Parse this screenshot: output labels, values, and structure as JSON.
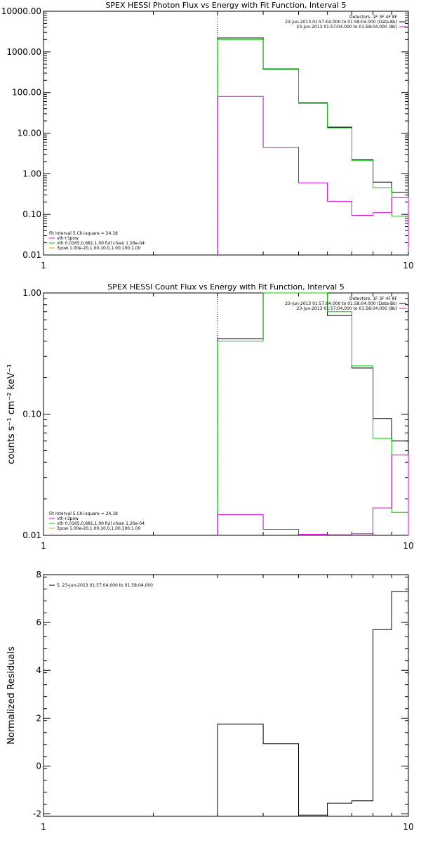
{
  "chart_data": [
    {
      "type": "line",
      "title": "SPEX HESSI Photon Flux vs Energy with Fit Function, Interval 5",
      "xlabel": "",
      "ylabel": "",
      "xscale": "log",
      "yscale": "log",
      "xlim": [
        1,
        10
      ],
      "ylim": [
        0.01,
        10000
      ],
      "x_ticks": [
        "1",
        "10"
      ],
      "y_ticks": [
        "0.01",
        "0.10",
        "1.00",
        "10.00",
        "100.00",
        "1000.00",
        "10000.00"
      ],
      "y_tick_values": [
        0.01,
        0.1,
        1,
        10,
        100,
        1000,
        10000
      ],
      "dotted_vline_x": 3.0,
      "header": [
        "Detectors: 1F 3F 4F 8F",
        "23-Jun-2013 01:57:04.000 to 01:58:04.000 (Data-Bk)",
        "23-Jun-2013 01:57:04.000 to 01:58:04.000 (Bk)"
      ],
      "header_colors": [
        "",
        "#000000",
        "#e000e0"
      ],
      "legend": {
        "lines": [
          "Fit Interval 5   Chi-square = 24.18",
          "vth+3pow",
          "vth 0.0165,0.681,1.00  full chian 1.26e-04",
          "3pow 1.00e-20,1.00,10.0,1.00,100,1.00"
        ],
        "colors": [
          "",
          "#e000e0",
          "#00cc00",
          "#e0a000"
        ]
      },
      "bin_edges": [
        3.0,
        4.0,
        5.0,
        6.0,
        7.0,
        8.0,
        9.0,
        10.0
      ],
      "series": [
        {
          "color": "#000000",
          "values": [
            2200,
            380,
            56,
            14,
            2.2,
            0.62,
            0.35
          ],
          "tail": 0.012
        },
        {
          "color": "#00cc00",
          "values": [
            2000,
            370,
            54,
            13.5,
            2.1,
            0.45,
            0.09
          ],
          "tail": 0.012
        },
        {
          "color": "#e000e0",
          "values": [
            80,
            4.5,
            0.6,
            0.21,
            0.095,
            0.11,
            0.26
          ],
          "tail": 0.012
        }
      ]
    },
    {
      "type": "line",
      "title": "SPEX HESSI Count Flux vs Energy with Fit Function, Interval 5",
      "xlabel": "",
      "ylabel": "counts s⁻¹ cm⁻² keV⁻¹",
      "xscale": "log",
      "yscale": "log",
      "xlim": [
        1,
        10
      ],
      "ylim": [
        0.01,
        1.0
      ],
      "x_ticks": [
        "1",
        "10"
      ],
      "y_ticks": [
        "0.01",
        "0.10",
        "1.00"
      ],
      "y_tick_values": [
        0.01,
        0.1,
        1.0
      ],
      "dotted_vline_x": 3.0,
      "header": [
        "Detectors: 1F 3F 4F 8F",
        "23-Jun-2013 01:57:04.000 to 01:58:04.000 (Data-Bk)",
        "23-Jun-2013 01:57:04.000 to 01:58:04.000 (Bk)"
      ],
      "header_colors": [
        "",
        "#000000",
        "#e000e0"
      ],
      "legend": {
        "lines": [
          "Fit Interval 5   Chi-square = 24.18",
          "vth+3pow",
          "vth 0.0165,0.681,1.00  full chian 1.26e-04",
          "3pow 1.00e-20,1.00,10.0,1.00,100,1.00"
        ],
        "colors": [
          "",
          "#e000e0",
          "#00cc00",
          "#e0a000"
        ]
      },
      "bin_edges": [
        3.0,
        4.0,
        5.0,
        6.0,
        7.0,
        8.0,
        9.0,
        10.0
      ],
      "series": [
        {
          "color": "#000000",
          "values": [
            0.42,
            1.0,
            1.0,
            0.65,
            0.24,
            0.092,
            0.06
          ],
          "tail": 0.009
        },
        {
          "color": "#00cc00",
          "values": [
            0.4,
            1.0,
            1.0,
            0.7,
            0.25,
            0.063,
            0.0155
          ],
          "tail": 0.009
        },
        {
          "color": "#e000e0",
          "values": [
            0.0148,
            0.0112,
            0.0102,
            0.0101,
            0.0103,
            0.0168,
            0.046
          ],
          "tail": 0.009
        }
      ]
    },
    {
      "type": "line",
      "title": "",
      "xlabel": "",
      "ylabel": "Normalized Residuals",
      "xscale": "log",
      "yscale": "linear",
      "xlim": [
        1,
        10
      ],
      "ylim": [
        -2.1,
        8
      ],
      "x_ticks": [
        "1",
        "10"
      ],
      "y_ticks": [
        "-2",
        "0",
        "2",
        "4",
        "6",
        "8"
      ],
      "y_tick_values": [
        -2,
        0,
        2,
        4,
        6,
        8
      ],
      "legend": {
        "lines": [
          "5, 23-Jun-2013 01:57:04.000 to 01:58:04.000"
        ],
        "colors": [
          "#000000"
        ]
      },
      "bin_edges": [
        3.0,
        4.0,
        5.0,
        6.0,
        7.0,
        8.0,
        9.0,
        10.0
      ],
      "series": [
        {
          "color": "#000000",
          "values": [
            1.75,
            0.93,
            -2.05,
            -1.55,
            -1.45,
            5.7,
            7.3
          ],
          "tail": null
        }
      ]
    }
  ]
}
